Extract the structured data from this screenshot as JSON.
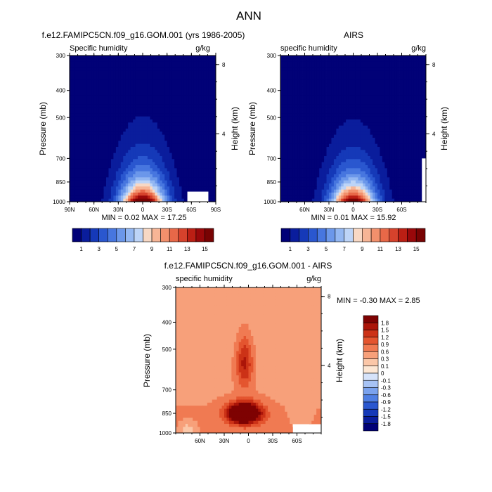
{
  "figure_title": "ANN",
  "chart_data": [
    {
      "type": "heatmap",
      "id": "model",
      "title": "f.e12.FAMIPC5CN.f09_g16.GOM.001 (yrs 1986-2005)",
      "left_label": "Specific humidity",
      "right_label": "g/kg",
      "ylabel": "Pressure (mb)",
      "y2label": "Height (km)",
      "x_ticks": [
        "90N",
        "60N",
        "30N",
        "0",
        "30S",
        "60S",
        "90S"
      ],
      "x_tick_values": [
        90,
        60,
        30,
        0,
        -30,
        -60,
        -90
      ],
      "xlim": [
        90,
        -90
      ],
      "y_ticks": [
        300,
        400,
        500,
        700,
        850,
        1000
      ],
      "ylim": [
        1000,
        300
      ],
      "height_ticks": [
        8,
        4
      ],
      "min_max_text": "MIN =  0.02  MAX =  17.25",
      "min": 0.02,
      "max": 17.25,
      "colorbar_labels": [
        "1",
        "3",
        "5",
        "7",
        "9",
        "11",
        "13",
        "15"
      ],
      "levels": [
        1,
        2,
        3,
        4,
        5,
        6,
        7,
        8,
        9,
        10,
        11,
        12,
        13,
        14,
        15,
        16
      ],
      "field": {
        "peak_lat": 0,
        "surface_q": 17.5,
        "lat_width": 26,
        "p_width": 1500,
        "floor": 0.6,
        "hole_lat": [
          -55,
          -80
        ],
        "hole_p": 920
      }
    },
    {
      "type": "heatmap",
      "id": "obs",
      "title": "AIRS",
      "left_label": "specific humidity",
      "right_label": "g/kg",
      "ylabel": "Pressure (mb)",
      "y2label": "Height (km)",
      "x_ticks": [
        "60N",
        "30N",
        "0",
        "30S",
        "60S"
      ],
      "x_tick_values": [
        60,
        30,
        0,
        -30,
        -60
      ],
      "xlim": [
        90,
        -90
      ],
      "y_ticks": [
        300,
        400,
        500,
        700,
        850,
        1000
      ],
      "ylim": [
        1000,
        300
      ],
      "height_ticks": [
        8,
        4
      ],
      "min_max_text": "MIN =  0.01  MAX =  15.92",
      "min": 0.01,
      "max": 15.92,
      "colorbar_labels": [
        "1",
        "3",
        "5",
        "7",
        "9",
        "11",
        "13",
        "15"
      ],
      "levels": [
        1,
        2,
        3,
        4,
        5,
        6,
        7,
        8,
        9,
        10,
        11,
        12,
        13,
        14,
        15,
        16
      ],
      "field": {
        "peak_lat": 0,
        "surface_q": 16.2,
        "lat_width": 26,
        "p_width": 1500,
        "floor": 0.6,
        "hole_lat": [
          -85,
          -90
        ],
        "hole_p": 700
      }
    },
    {
      "type": "heatmap",
      "id": "diff",
      "title": "f.e12.FAMIPC5CN.f09_g16.GOM.001 - AIRS",
      "left_label": "specific humidity",
      "right_label": "g/kg",
      "ylabel": "Pressure (mb)",
      "y2label": "Height (km)",
      "x_ticks": [
        "60N",
        "30N",
        "0",
        "30S",
        "60S"
      ],
      "x_tick_values": [
        60,
        30,
        0,
        -30,
        -60
      ],
      "xlim": [
        90,
        -90
      ],
      "y_ticks": [
        300,
        400,
        500,
        700,
        850,
        1000
      ],
      "ylim": [
        1000,
        300
      ],
      "height_ticks": [
        8,
        4
      ],
      "min_max_text": "MIN = -0.30  MAX =  2.85",
      "min": -0.3,
      "max": 2.85,
      "colorbar_labels": [
        "1.8",
        "1.5",
        "1.2",
        "0.9",
        "0.6",
        "0.3",
        "0.1",
        "0",
        "-0.1",
        "-0.3",
        "-0.6",
        "-0.9",
        "-1.2",
        "-1.5",
        "-1.8"
      ],
      "levels": [
        -1.8,
        -1.5,
        -1.2,
        -0.9,
        -0.6,
        -0.3,
        -0.1,
        0,
        0.1,
        0.3,
        0.6,
        0.9,
        1.2,
        1.5,
        1.8
      ],
      "field": {
        "hole_lat": [
          -55,
          -90
        ],
        "hole_p": 930
      }
    }
  ]
}
